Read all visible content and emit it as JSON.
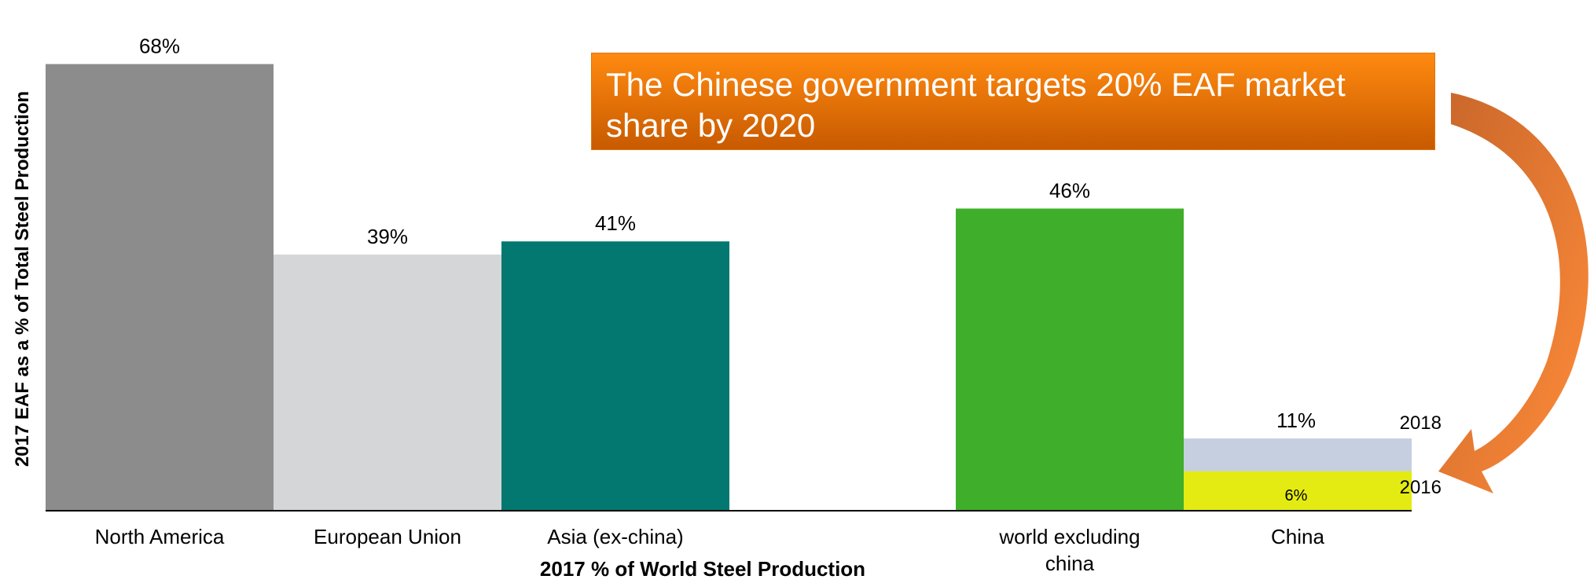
{
  "chart_data": {
    "type": "bar",
    "title": "",
    "ylabel": "2017 EAF as a % of Total Steel Production",
    "xlabel": "2017 % of World Steel Production",
    "ylim": [
      0,
      70
    ],
    "categories": [
      "North America",
      "European Union",
      "Asia (ex-china)",
      "world excluding china",
      "China"
    ],
    "values": [
      68,
      39,
      41,
      46,
      11
    ],
    "value_labels": [
      "68%",
      "39%",
      "41%",
      "46%",
      "11%"
    ],
    "china_breakdown": [
      {
        "year": "2016",
        "value": 6,
        "label": "6%"
      },
      {
        "year": "2018",
        "value": 11,
        "label": "11%"
      }
    ],
    "colors": {
      "North America": "#8c8c8c",
      "European Union": "#d5d6d8",
      "Asia (ex-china)": "#037870",
      "world excluding china": "#3fae2a",
      "China 2016": "#e4eb12",
      "China 2018": "#c5cfe0"
    },
    "grid": false,
    "legend": "none"
  },
  "callout": {
    "text": "The Chinese government targets 20% EAF market share by 2020"
  },
  "arrow_color": "#e8782a"
}
